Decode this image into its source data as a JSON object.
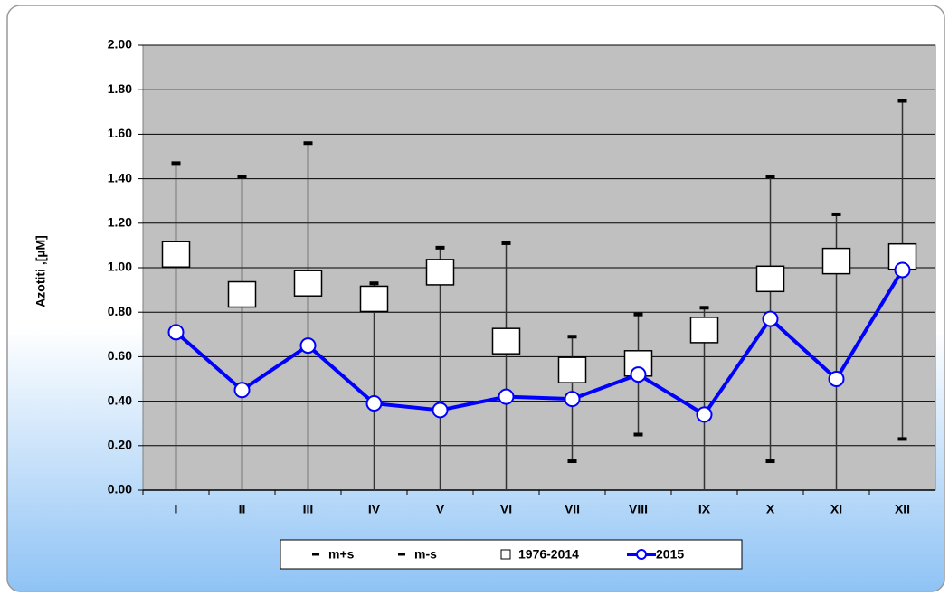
{
  "chart_data": {
    "type": "line",
    "y_label": "Azotiti ,[µM]",
    "categories": [
      "I",
      "II",
      "III",
      "IV",
      "V",
      "VI",
      "VII",
      "VIII",
      "IX",
      "X",
      "XI",
      "XII"
    ],
    "series": [
      {
        "name": "m+s",
        "color": "#000000",
        "marker": "dash",
        "values": [
          1.47,
          1.41,
          1.56,
          0.93,
          1.09,
          1.11,
          0.69,
          0.79,
          0.82,
          1.41,
          1.24,
          1.75
        ]
      },
      {
        "name": "m-s",
        "color": "#000000",
        "marker": "dash",
        "values": [
          null,
          null,
          null,
          null,
          null,
          null,
          0.13,
          0.25,
          null,
          0.13,
          null,
          0.23
        ]
      },
      {
        "name": "1976-2014",
        "color": "#ffffff",
        "marker": "square",
        "values": [
          1.06,
          0.88,
          0.93,
          0.86,
          0.98,
          0.67,
          0.54,
          0.57,
          0.72,
          0.95,
          1.03,
          1.05
        ]
      },
      {
        "name": "2015",
        "color": "#0000ff",
        "marker": "circle",
        "values": [
          0.71,
          0.45,
          0.65,
          0.39,
          0.36,
          0.42,
          0.41,
          0.52,
          0.34,
          0.77,
          0.5,
          0.99
        ]
      }
    ],
    "ylim": [
      0,
      2
    ],
    "yticks": [
      {
        "value": 0,
        "label": "0.00"
      },
      {
        "value": 0.2,
        "label": "0.20"
      },
      {
        "value": 0.4,
        "label": "0.40"
      },
      {
        "value": 0.6,
        "label": "0.60"
      },
      {
        "value": 0.8,
        "label": "0.80"
      },
      {
        "value": 1.0,
        "label": "1.00"
      },
      {
        "value": 1.2,
        "label": "1.20"
      },
      {
        "value": 1.4,
        "label": "1.40"
      },
      {
        "value": 1.6,
        "label": "1.60"
      },
      {
        "value": 1.8,
        "label": "1.80"
      },
      {
        "value": 2.0,
        "label": "2.00"
      }
    ],
    "grid": true,
    "plot_color": "#c0c0c0",
    "legend": "bottom"
  }
}
